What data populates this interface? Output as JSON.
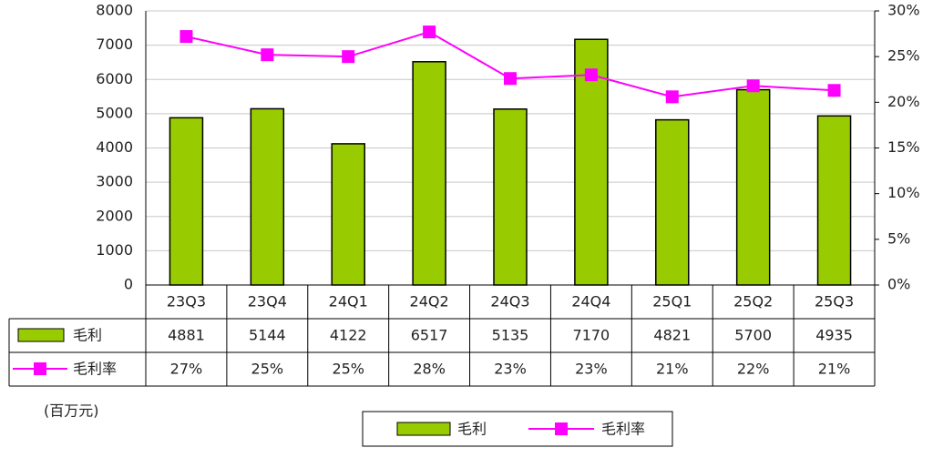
{
  "chart_data": {
    "type": "bar-line",
    "categories": [
      "23Q3",
      "23Q4",
      "24Q1",
      "24Q2",
      "24Q3",
      "24Q4",
      "25Q1",
      "25Q2",
      "25Q3"
    ],
    "series": [
      {
        "name": "毛利",
        "type": "bar",
        "color": "#99cc00",
        "values": [
          4881,
          5144,
          4122,
          6517,
          5135,
          7170,
          4821,
          5700,
          4935
        ]
      },
      {
        "name": "毛利率",
        "type": "line",
        "axis": "y2",
        "color": "#ff00ff",
        "values": [
          27.2,
          25.2,
          25.0,
          27.7,
          22.6,
          23.0,
          20.6,
          21.8,
          21.3
        ],
        "value_labels": [
          "27%",
          "25%",
          "25%",
          "28%",
          "23%",
          "23%",
          "21%",
          "22%",
          "21%"
        ]
      }
    ],
    "ylim": [
      0,
      8000
    ],
    "yticks": [
      0,
      1000,
      2000,
      3000,
      4000,
      5000,
      6000,
      7000,
      8000
    ],
    "y2lim": [
      0,
      30
    ],
    "y2ticks": [
      {
        "value": 0,
        "label": "0%"
      },
      {
        "value": 5,
        "label": "5%"
      },
      {
        "value": 10,
        "label": "10%"
      },
      {
        "value": 15,
        "label": "15%"
      },
      {
        "value": 20,
        "label": "20%"
      },
      {
        "value": 25,
        "label": "25%"
      },
      {
        "value": 30,
        "label": "30%"
      }
    ],
    "grid": true,
    "unit_label": "(百万元)"
  }
}
